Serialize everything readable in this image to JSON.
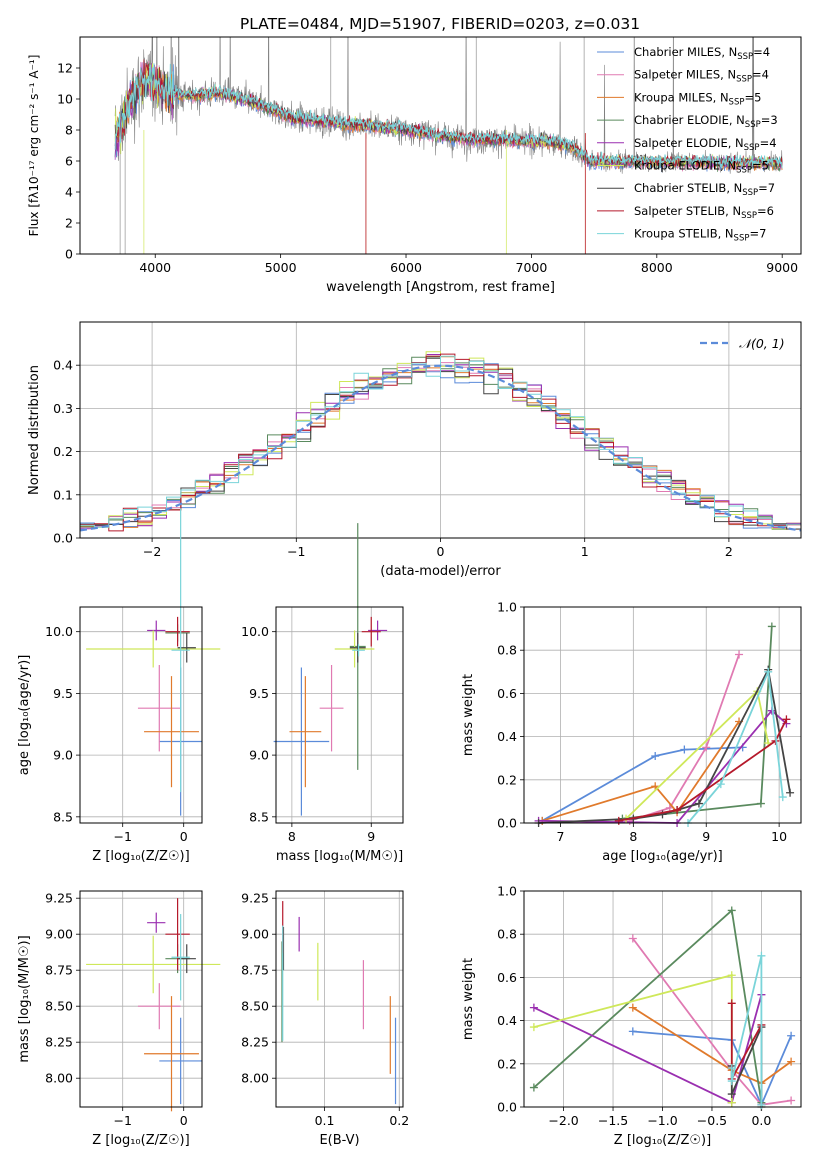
{
  "figure": {
    "title": "PLATE=0484, MJD=51907, FIBERID=0203, z=0.031"
  },
  "colors": {
    "chabrier_miles": "#5b8bd9",
    "salpeter_miles": "#e07ab2",
    "kroupa_miles": "#e07a2c",
    "chabrier_elodie": "#5a8a5e",
    "salpeter_elodie": "#9a2fb0",
    "kroupa_elodie": "#cfe85a",
    "chabrier_stelib": "#444444",
    "salpeter_stelib": "#b5192b",
    "kroupa_stelib": "#7ad4d9",
    "data": "#808080",
    "normal": "#5b8bd9",
    "grid": "#b0b0b0"
  },
  "chart_data": [
    {
      "id": "spectrum",
      "type": "line",
      "xlabel": "wavelength [Angstrom, rest frame]",
      "ylabel": "Flux [fλ10⁻¹⁷ erg cm⁻² s⁻¹ A⁻¹]",
      "xlim": [
        3400,
        9150
      ],
      "ylim": [
        0,
        14
      ],
      "xticks": [
        4000,
        5000,
        6000,
        7000,
        8000,
        9000
      ],
      "yticks": [
        0,
        2,
        4,
        6,
        8,
        10,
        12
      ],
      "grid": false,
      "legend_position": "upper-right",
      "legend": [
        {
          "label": "Chabrier MILES, N",
          "sub": "SSP",
          "n": "=4"
        },
        {
          "label": "Salpeter MILES, N",
          "sub": "SSP",
          "n": "=4"
        },
        {
          "label": "Kroupa MILES, N",
          "sub": "SSP",
          "n": "=5"
        },
        {
          "label": "Chabrier ELODIE, N",
          "sub": "SSP",
          "n": "=3"
        },
        {
          "label": "Salpeter ELODIE, N",
          "sub": "SSP",
          "n": "=4"
        },
        {
          "label": "Kroupa ELODIE, N",
          "sub": "SSP",
          "n": "=5"
        },
        {
          "label": "Chabrier STELIB, N",
          "sub": "SSP",
          "n": "=7"
        },
        {
          "label": "Salpeter STELIB, N",
          "sub": "SSP",
          "n": "=6"
        },
        {
          "label": "Kroupa STELIB, N",
          "sub": "SSP",
          "n": "=7"
        }
      ],
      "continuum": {
        "x": [
          3680,
          3800,
          3900,
          4000,
          4100,
          4300,
          4500,
          4700,
          4900,
          5100,
          5300,
          5500,
          5700,
          5900,
          6100,
          6300,
          6500,
          6700,
          6900,
          7100,
          7300,
          7450
        ],
        "y": [
          7.2,
          9.8,
          11.3,
          11.0,
          10.4,
          10.2,
          10.4,
          10.0,
          9.4,
          8.8,
          8.6,
          8.4,
          8.3,
          8.1,
          7.9,
          7.6,
          7.4,
          7.4,
          7.3,
          7.3,
          7.0,
          6.2
        ]
      }
    },
    {
      "id": "residuals",
      "type": "area",
      "xlabel": "(data-model)/error",
      "ylabel": "Normed distribution",
      "xlim": [
        -2.5,
        2.5
      ],
      "ylim": [
        0,
        0.5
      ],
      "xticks": [
        -2,
        -1,
        0,
        1,
        2
      ],
      "yticks": [
        0.0,
        0.1,
        0.2,
        0.3,
        0.4
      ],
      "grid": true,
      "legend_position": "upper-right",
      "legend": [
        "𝒩(0, 1)"
      ],
      "bin_width": 0.1
    },
    {
      "id": "age_vs_Z",
      "type": "scatter",
      "xlabel": "Z [log₁₀(Z/Z☉)]",
      "ylabel": "age  [log₁₀(age/yr)]",
      "xlim": [
        -1.7,
        0.3
      ],
      "ylim": [
        8.45,
        10.2
      ],
      "xticks": [
        -1,
        0
      ],
      "yticks": [
        8.5,
        9.0,
        9.5,
        10.0
      ],
      "grid": true,
      "points": [
        {
          "series": "Chabrier MILES",
          "x": -0.05,
          "y": 9.11,
          "xerr": 0.35,
          "yerr": 0.6
        },
        {
          "series": "Salpeter MILES",
          "x": -0.4,
          "y": 9.38,
          "xerr": 0.35,
          "yerr": 0.35
        },
        {
          "series": "Kroupa MILES",
          "x": -0.2,
          "y": 9.19,
          "xerr": 0.45,
          "yerr": 0.45
        },
        {
          "series": "Chabrier ELODIE",
          "x": -0.1,
          "y": 9.99,
          "xerr": 0.2,
          "yerr": 0.07
        },
        {
          "series": "Salpeter ELODIE",
          "x": -0.45,
          "y": 10.01,
          "xerr": 0.15,
          "yerr": 0.08
        },
        {
          "series": "Kroupa ELODIE",
          "x": -0.5,
          "y": 9.86,
          "xerr": 1.1,
          "yerr": 0.15
        },
        {
          "series": "Chabrier STELIB",
          "x": 0.05,
          "y": 9.87,
          "xerr": 0.15,
          "yerr": 0.12
        },
        {
          "series": "Salpeter STELIB",
          "x": -0.1,
          "y": 10.0,
          "xerr": 0.2,
          "yerr": 0.12
        },
        {
          "series": "Kroupa STELIB",
          "x": -0.05,
          "y": 9.85,
          "xerr": 0.15,
          "yerr": 1.15
        }
      ]
    },
    {
      "id": "age_vs_mass",
      "type": "scatter",
      "xlabel": "mass [log₁₀(M/M☉)]",
      "ylabel": "",
      "xlim": [
        7.8,
        9.4
      ],
      "ylim": [
        8.45,
        10.2
      ],
      "xticks": [
        8,
        9
      ],
      "yticks": [
        8.5,
        9.0,
        9.5,
        10.0
      ],
      "grid": true,
      "points": [
        {
          "series": "Chabrier MILES",
          "x": 8.12,
          "y": 9.11,
          "xerr": 0.35,
          "yerr": 0.6
        },
        {
          "series": "Salpeter MILES",
          "x": 8.5,
          "y": 9.38,
          "xerr": 0.15,
          "yerr": 0.35
        },
        {
          "series": "Kroupa MILES",
          "x": 8.17,
          "y": 9.19,
          "xerr": 0.2,
          "yerr": 0.45
        },
        {
          "series": "Chabrier ELODIE",
          "x": 8.83,
          "y": 9.88,
          "xerr": 0.1,
          "yerr": 1.0
        },
        {
          "series": "Salpeter ELODIE",
          "x": 9.08,
          "y": 10.01,
          "xerr": 0.12,
          "yerr": 0.08
        },
        {
          "series": "Kroupa ELODIE",
          "x": 8.79,
          "y": 9.86,
          "xerr": 0.25,
          "yerr": 0.15
        },
        {
          "series": "Chabrier STELIB",
          "x": 8.83,
          "y": 9.87,
          "xerr": 0.1,
          "yerr": 0.12
        },
        {
          "series": "Salpeter STELIB",
          "x": 9.0,
          "y": 10.0,
          "xerr": 0.12,
          "yerr": 0.12
        },
        {
          "series": "Kroupa STELIB",
          "x": 8.84,
          "y": 9.85,
          "xerr": 0.08,
          "yerr": 0.05
        }
      ]
    },
    {
      "id": "weight_vs_age",
      "type": "line",
      "xlabel": "age  [log₁₀(age/yr)]",
      "ylabel": "mass weight",
      "xlim": [
        6.5,
        10.3
      ],
      "ylim": [
        0,
        1.0
      ],
      "xticks": [
        7,
        8,
        9,
        10
      ],
      "yticks": [
        0.0,
        0.2,
        0.4,
        0.6,
        0.8,
        1.0
      ],
      "grid": true,
      "series": [
        {
          "name": "Chabrier MILES",
          "x": [
            6.75,
            8.3,
            8.7,
            9.5
          ],
          "y": [
            0.01,
            0.31,
            0.34,
            0.35
          ]
        },
        {
          "name": "Salpeter MILES",
          "x": [
            7.95,
            8.5,
            9.0,
            9.45
          ],
          "y": [
            0.01,
            0.07,
            0.35,
            0.78
          ]
        },
        {
          "name": "Kroupa MILES",
          "x": [
            6.75,
            8.3,
            8.6,
            9.45
          ],
          "y": [
            0.01,
            0.17,
            0.05,
            0.47
          ]
        },
        {
          "name": "Chabrier ELODIE",
          "x": [
            7.85,
            9.75,
            9.9
          ],
          "y": [
            0.02,
            0.09,
            0.91
          ]
        },
        {
          "name": "Salpeter ELODIE",
          "x": [
            6.7,
            8.6,
            9.9,
            10.1
          ],
          "y": [
            0.01,
            0.0,
            0.52,
            0.46
          ]
        },
        {
          "name": "Kroupa ELODIE",
          "x": [
            7.9,
            9.7,
            9.85
          ],
          "y": [
            0.02,
            0.61,
            0.37
          ]
        },
        {
          "name": "Chabrier STELIB",
          "x": [
            6.7,
            8.0,
            8.4,
            8.6,
            8.9,
            9.85,
            10.15
          ],
          "y": [
            0.0,
            0.02,
            0.04,
            0.06,
            0.09,
            0.71,
            0.14
          ]
        },
        {
          "name": "Salpeter STELIB",
          "x": [
            7.8,
            8.6,
            9.95,
            10.1
          ],
          "y": [
            0.01,
            0.06,
            0.38,
            0.48
          ]
        },
        {
          "name": "Kroupa STELIB",
          "x": [
            8.75,
            9.2,
            9.85,
            10.05
          ],
          "y": [
            0.0,
            0.18,
            0.7,
            0.12
          ]
        }
      ]
    },
    {
      "id": "mass_vs_Z",
      "type": "scatter",
      "xlabel": "Z [log₁₀(Z/Z☉)]",
      "ylabel": "mass [log₁₀(M/M☉)]",
      "xlim": [
        -1.7,
        0.3
      ],
      "ylim": [
        7.8,
        9.3
      ],
      "xticks": [
        -1,
        0
      ],
      "yticks": [
        8.0,
        8.25,
        8.5,
        8.75,
        9.0,
        9.25
      ],
      "grid": true,
      "points": [
        {
          "series": "Chabrier MILES",
          "x": -0.05,
          "y": 8.12,
          "xerr": 0.35,
          "yerr": 0.3
        },
        {
          "series": "Salpeter MILES",
          "x": -0.4,
          "y": 8.5,
          "xerr": 0.35,
          "yerr": 0.16
        },
        {
          "series": "Kroupa MILES",
          "x": -0.2,
          "y": 8.17,
          "xerr": 0.45,
          "yerr": 0.4
        },
        {
          "series": "Chabrier ELODIE",
          "x": -0.1,
          "y": 8.83,
          "xerr": 0.2,
          "yerr": 0.1
        },
        {
          "series": "Salpeter ELODIE",
          "x": -0.45,
          "y": 9.08,
          "xerr": 0.15,
          "yerr": 0.07
        },
        {
          "series": "Kroupa ELODIE",
          "x": -0.5,
          "y": 8.79,
          "xerr": 1.1,
          "yerr": 0.2
        },
        {
          "series": "Chabrier STELIB",
          "x": 0.05,
          "y": 8.83,
          "xerr": 0.15,
          "yerr": 0.1
        },
        {
          "series": "Salpeter STELIB",
          "x": -0.1,
          "y": 9.0,
          "xerr": 0.2,
          "yerr": 0.25
        },
        {
          "series": "Kroupa STELIB",
          "x": -0.05,
          "y": 8.84,
          "xerr": 0.15,
          "yerr": 0.3
        }
      ]
    },
    {
      "id": "mass_vs_EBV",
      "type": "scatter",
      "xlabel": "E(B-V)",
      "ylabel": "",
      "xlim": [
        0.035,
        0.205
      ],
      "ylim": [
        7.8,
        9.3
      ],
      "xticks": [
        0.1,
        0.2
      ],
      "tick_labels": [
        "0.1",
        "0.2"
      ],
      "yticks": [
        8.0,
        8.25,
        8.5,
        8.75,
        9.0,
        9.25
      ],
      "grid": true,
      "points": [
        {
          "series": "Chabrier MILES",
          "x": 0.195,
          "y": 8.12,
          "xerr": 0.0,
          "yerr": 0.3
        },
        {
          "series": "Salpeter MILES",
          "x": 0.152,
          "y": 8.58,
          "xerr": 0.0,
          "yerr": 0.24
        },
        {
          "series": "Kroupa MILES",
          "x": 0.188,
          "y": 8.3,
          "xerr": 0.0,
          "yerr": 0.27
        },
        {
          "series": "Chabrier ELODIE",
          "x": 0.043,
          "y": 8.6,
          "xerr": 0.0,
          "yerr": 0.35
        },
        {
          "series": "Salpeter ELODIE",
          "x": 0.066,
          "y": 9.0,
          "xerr": 0.0,
          "yerr": 0.12
        },
        {
          "series": "Kroupa ELODIE",
          "x": 0.091,
          "y": 8.74,
          "xerr": 0.0,
          "yerr": 0.2
        },
        {
          "series": "Chabrier STELIB",
          "x": 0.045,
          "y": 8.9,
          "xerr": 0.0,
          "yerr": 0.15
        },
        {
          "series": "Salpeter STELIB",
          "x": 0.044,
          "y": 9.05,
          "xerr": 0.0,
          "yerr": 0.18
        },
        {
          "series": "Kroupa STELIB",
          "x": 0.044,
          "y": 8.66,
          "xerr": 0.0,
          "yerr": 0.4
        }
      ]
    },
    {
      "id": "weight_vs_Z",
      "type": "line",
      "xlabel": "Z [log₁₀(Z/Z☉)]",
      "ylabel": "mass weight",
      "xlim": [
        -2.4,
        0.4
      ],
      "ylim": [
        0,
        1.0
      ],
      "xticks": [
        -2.0,
        -1.5,
        -1.0,
        -0.5,
        0.0
      ],
      "tick_labels": [
        "−2.0",
        "−1.5",
        "−1.0",
        "−0.5",
        "0.0"
      ],
      "yticks": [
        0.0,
        0.2,
        0.4,
        0.6,
        0.8,
        1.0
      ],
      "grid": true,
      "series": [
        {
          "name": "Chabrier MILES",
          "x": [
            -1.3,
            -0.3,
            0.0,
            0.3
          ],
          "y": [
            0.35,
            0.31,
            0.01,
            0.33
          ]
        },
        {
          "name": "Salpeter MILES",
          "x": [
            -1.3,
            -0.3,
            0.0,
            0.3
          ],
          "y": [
            0.78,
            0.17,
            0.01,
            0.03
          ]
        },
        {
          "name": "Kroupa MILES",
          "x": [
            -1.3,
            -0.3,
            0.0,
            0.3
          ],
          "y": [
            0.46,
            0.17,
            0.11,
            0.21
          ]
        },
        {
          "name": "Chabrier ELODIE",
          "x": [
            -2.3,
            -0.3,
            0.0
          ],
          "y": [
            0.09,
            0.91,
            0.02
          ]
        },
        {
          "name": "Salpeter ELODIE",
          "x": [
            -2.3,
            -0.3,
            0.0
          ],
          "y": [
            0.46,
            0.02,
            0.52
          ]
        },
        {
          "name": "Kroupa ELODIE",
          "x": [
            -2.3,
            -0.3,
            -0.3
          ],
          "y": [
            0.37,
            0.61,
            0.02
          ]
        },
        {
          "name": "Chabrier STELIB",
          "x": [
            -0.3,
            -0.3,
            0.0,
            0.0
          ],
          "y": [
            0.19,
            0.06,
            0.37,
            0.0
          ]
        },
        {
          "name": "Salpeter STELIB",
          "x": [
            -0.3,
            -0.3,
            0.0
          ],
          "y": [
            0.48,
            0.13,
            0.38
          ]
        },
        {
          "name": "Kroupa STELIB",
          "x": [
            -0.3,
            -0.3,
            0.0,
            0.0
          ],
          "y": [
            0.18,
            0.12,
            0.7,
            0.01
          ]
        }
      ]
    }
  ]
}
